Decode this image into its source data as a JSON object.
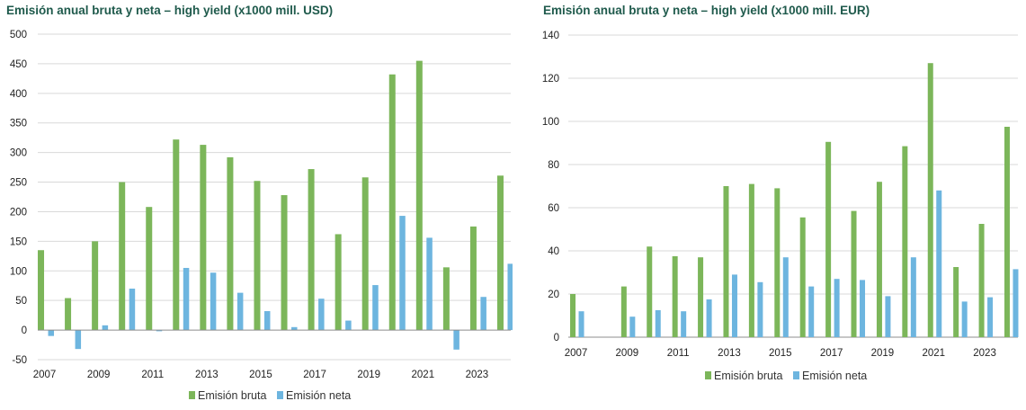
{
  "chart_data": [
    {
      "type": "bar",
      "title": "Emisión anual bruta y neta – high yield (x1000 mill. USD)",
      "xlabel": "",
      "ylabel": "",
      "ylim": [
        -50,
        500
      ],
      "yticks": [
        -50,
        0,
        50,
        100,
        150,
        200,
        250,
        300,
        350,
        400,
        450,
        500
      ],
      "x": [
        2007,
        2008,
        2009,
        2010,
        2011,
        2012,
        2013,
        2014,
        2015,
        2016,
        2017,
        2018,
        2019,
        2020,
        2021,
        2022,
        2023,
        2024
      ],
      "xtick_labels": [
        "2007",
        "2009",
        "2011",
        "2013",
        "2015",
        "2017",
        "2019",
        "2021",
        "2023"
      ],
      "legend_position": "bottom",
      "grid": true,
      "series": [
        {
          "name": "Emisión bruta",
          "color": "#7cb65a",
          "values": [
            135,
            54,
            150,
            250,
            208,
            322,
            313,
            292,
            252,
            228,
            272,
            162,
            258,
            432,
            455,
            106,
            175,
            261
          ]
        },
        {
          "name": "Emisión neta",
          "color": "#6db5df",
          "values": [
            -10,
            -32,
            8,
            70,
            -2,
            105,
            97,
            63,
            32,
            5,
            53,
            16,
            76,
            193,
            156,
            -33,
            56,
            112
          ]
        }
      ]
    },
    {
      "type": "bar",
      "title": "Emisión anual bruta y neta – high yield (x1000 mill. EUR)",
      "xlabel": "",
      "ylabel": "",
      "ylim": [
        0,
        140
      ],
      "yticks": [
        0,
        20,
        40,
        60,
        80,
        100,
        120,
        140
      ],
      "x": [
        2007,
        2008,
        2009,
        2010,
        2011,
        2012,
        2013,
        2014,
        2015,
        2016,
        2017,
        2018,
        2019,
        2020,
        2021,
        2022,
        2023,
        2024
      ],
      "xtick_labels": [
        "2007",
        "2009",
        "2011",
        "2013",
        "2015",
        "2017",
        "2019",
        "2021",
        "2023"
      ],
      "legend_position": "bottom",
      "grid": true,
      "series": [
        {
          "name": "Emisión bruta",
          "color": "#7cb65a",
          "values": [
            20,
            0,
            23.5,
            42,
            37.5,
            37,
            70,
            71,
            69,
            55.5,
            90.5,
            58.5,
            72,
            88.5,
            127,
            32.5,
            52.5,
            97.5
          ]
        },
        {
          "name": "Emisión neta",
          "color": "#6db5df",
          "values": [
            12,
            0,
            9.5,
            12.5,
            12,
            17.5,
            29,
            25.5,
            37,
            23.5,
            27,
            26.5,
            19,
            37,
            68,
            16.5,
            18.5,
            31.5
          ]
        }
      ]
    }
  ]
}
